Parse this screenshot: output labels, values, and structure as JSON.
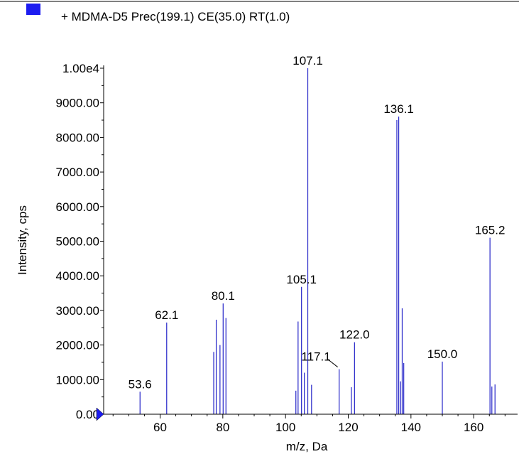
{
  "legend": {
    "text": "+ MDMA-D5 Prec(199.1) CE(35.0) RT(1.0)",
    "swatch_color": "#1c1cf0"
  },
  "colors": {
    "peak": "#2424c8",
    "axis": "#000000"
  },
  "chart_data": {
    "type": "bar",
    "xlabel": "m/z, Da",
    "ylabel": "Intensity, cps",
    "xlim": [
      42,
      174
    ],
    "ylim": [
      0,
      10000
    ],
    "x_ticks": [
      60,
      80,
      100,
      120,
      140,
      160
    ],
    "x_tick_labels": [
      "60",
      "80",
      "100",
      "120",
      "140",
      "160"
    ],
    "y_ticks": [
      0,
      1000,
      2000,
      3000,
      4000,
      5000,
      6000,
      7000,
      8000,
      9000,
      10000
    ],
    "y_tick_labels": [
      "0.00",
      "1000.00",
      "2000.00",
      "3000.00",
      "4000.00",
      "5000.00",
      "6000.00",
      "7000.00",
      "8000.00",
      "9000.00",
      "1.00e4"
    ],
    "peaks": [
      {
        "mz": 53.6,
        "intensity": 650
      },
      {
        "mz": 62.1,
        "intensity": 2650
      },
      {
        "mz": 77.1,
        "intensity": 1800
      },
      {
        "mz": 77.9,
        "intensity": 2730
      },
      {
        "mz": 79.1,
        "intensity": 2000
      },
      {
        "mz": 80.1,
        "intensity": 3200
      },
      {
        "mz": 81.0,
        "intensity": 2780
      },
      {
        "mz": 103.3,
        "intensity": 680
      },
      {
        "mz": 104.0,
        "intensity": 2680
      },
      {
        "mz": 105.1,
        "intensity": 3680
      },
      {
        "mz": 106.0,
        "intensity": 1200
      },
      {
        "mz": 107.1,
        "intensity": 10000
      },
      {
        "mz": 108.3,
        "intensity": 850
      },
      {
        "mz": 117.1,
        "intensity": 1300
      },
      {
        "mz": 121.0,
        "intensity": 780
      },
      {
        "mz": 122.0,
        "intensity": 2080
      },
      {
        "mz": 135.5,
        "intensity": 8500
      },
      {
        "mz": 136.1,
        "intensity": 8600
      },
      {
        "mz": 136.7,
        "intensity": 950
      },
      {
        "mz": 137.2,
        "intensity": 3060
      },
      {
        "mz": 137.7,
        "intensity": 1480
      },
      {
        "mz": 150.0,
        "intensity": 1520
      },
      {
        "mz": 165.2,
        "intensity": 5100
      },
      {
        "mz": 165.8,
        "intensity": 800
      },
      {
        "mz": 166.8,
        "intensity": 860
      }
    ],
    "peak_labels": [
      {
        "text": "53.6",
        "mz": 53.6,
        "intensity": 650
      },
      {
        "text": "62.1",
        "mz": 62.1,
        "intensity": 2650
      },
      {
        "text": "80.1",
        "mz": 80.1,
        "intensity": 3200
      },
      {
        "text": "105.1",
        "mz": 105.1,
        "intensity": 3680
      },
      {
        "text": "107.1",
        "mz": 107.1,
        "intensity": 10000
      },
      {
        "text": "117.1",
        "mz": 117.1,
        "intensity": 1300
      },
      {
        "text": "122.0",
        "mz": 122.0,
        "intensity": 2080
      },
      {
        "text": "136.1",
        "mz": 136.1,
        "intensity": 8600
      },
      {
        "text": "150.0",
        "mz": 150.0,
        "intensity": 1520
      },
      {
        "text": "165.2",
        "mz": 165.2,
        "intensity": 5100
      }
    ]
  }
}
